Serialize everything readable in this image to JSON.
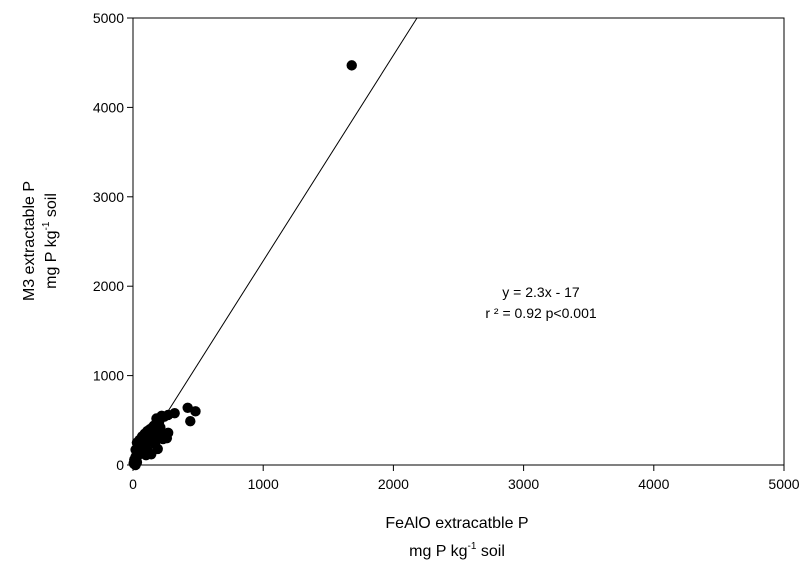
{
  "chart_data": {
    "type": "scatter",
    "title": "",
    "xlabel": {
      "line1": "FeAlO extracatble P",
      "line2_pre": "mg P kg",
      "line2_sup": "-1",
      "line2_post": " soil"
    },
    "ylabel": {
      "line1": "M3 extractable P",
      "line2_pre": "mg P kg",
      "line2_sup": "-1",
      "line2_post": " soil"
    },
    "xlim": [
      0,
      5000
    ],
    "ylim": [
      0,
      5000
    ],
    "xticks": [
      0,
      1000,
      2000,
      3000,
      4000,
      5000
    ],
    "yticks": [
      0,
      1000,
      2000,
      3000,
      4000,
      5000
    ],
    "xtick_labels": [
      "0",
      "1000",
      "2000",
      "3000",
      "4000",
      "5000"
    ],
    "ytick_labels": [
      "0",
      "1000",
      "2000",
      "3000",
      "4000",
      "5000"
    ],
    "grid": false,
    "legend": "none",
    "series": [
      {
        "x": [
          1680,
          420,
          480,
          440,
          320,
          270,
          240,
          220,
          200,
          180,
          260,
          230,
          250,
          270,
          150,
          120,
          130,
          160,
          170,
          190,
          200,
          90,
          100,
          110,
          80,
          70,
          60,
          50,
          40,
          30,
          20,
          10,
          5,
          15,
          25,
          35,
          45,
          55,
          65,
          75,
          85,
          95,
          105,
          115,
          125,
          140,
          150,
          160,
          30,
          50,
          70,
          90,
          110,
          130,
          20,
          40,
          60,
          80,
          100,
          210,
          180,
          160,
          10,
          20,
          30
        ],
        "y": [
          4470,
          640,
          600,
          490,
          580,
          560,
          540,
          550,
          480,
          520,
          300,
          290,
          320,
          360,
          420,
          380,
          300,
          260,
          230,
          180,
          350,
          330,
          290,
          260,
          240,
          300,
          220,
          180,
          150,
          120,
          90,
          60,
          20,
          40,
          70,
          100,
          130,
          160,
          200,
          230,
          270,
          200,
          170,
          150,
          130,
          120,
          260,
          300,
          250,
          280,
          320,
          350,
          380,
          400,
          170,
          200,
          210,
          140,
          110,
          420,
          390,
          440,
          10,
          0,
          30
        ]
      }
    ],
    "fit": {
      "slope": 2.3,
      "intercept": -17
    },
    "annotations": [
      "y = 2.3x - 17",
      "r ² = 0.92 p<0.001"
    ],
    "marker_color": "#000000",
    "line_color": "#000000"
  }
}
